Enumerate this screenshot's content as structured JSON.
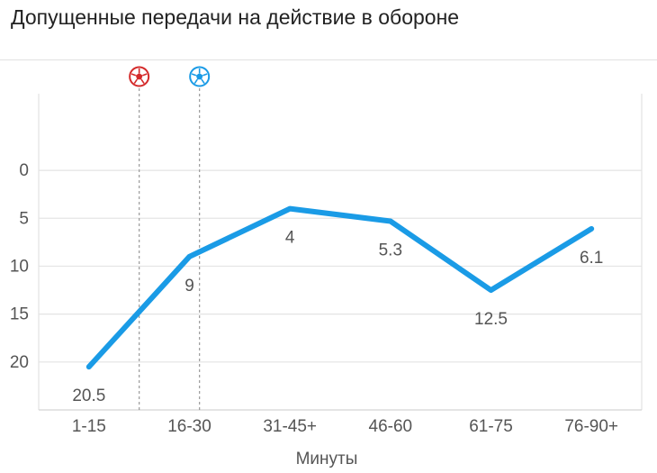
{
  "chart_data": {
    "type": "line",
    "title": "Допущенные передачи на действие в обороне",
    "xlabel": "Минуты",
    "ylabel": "",
    "categories": [
      "1-15",
      "16-30",
      "31-45+",
      "46-60",
      "61-75",
      "76-90+"
    ],
    "series": [
      {
        "values": [
          20.5,
          9,
          4,
          5.3,
          12.5,
          6.1
        ],
        "color": "#1a9be6"
      }
    ],
    "data_labels": [
      "20.5",
      "9",
      "4",
      "5.3",
      "12.5",
      "6.1"
    ],
    "y_ticks": [
      0,
      5,
      10,
      15,
      20
    ],
    "ylim": [
      -8,
      25
    ],
    "y_inverted": true,
    "grid": true,
    "events": [
      {
        "x_index": 0.5,
        "icon": "soccer-ball-red-icon",
        "color": "#d42a2a"
      },
      {
        "x_index": 1.1,
        "icon": "soccer-ball-blue-icon",
        "color": "#1a9be6"
      }
    ]
  }
}
